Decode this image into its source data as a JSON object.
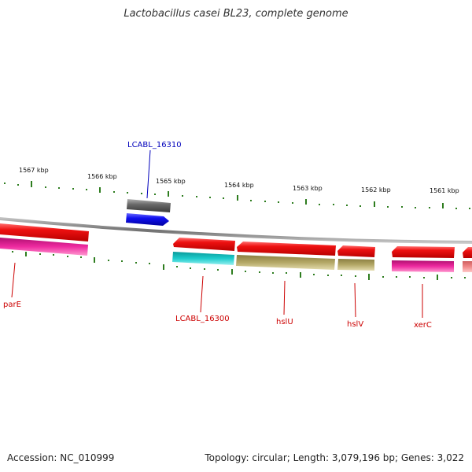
{
  "title": "Lactobacillus casei BL23, complete genome",
  "accession": "Accession: NC_010999",
  "summary": "Topology: circular; Length: 3,079,196 bp; Genes: 3,022",
  "colors": {
    "backbone": "#8a8a8a",
    "ticks": "#2e7d1f",
    "gene_red": "#ee1111",
    "gene_pink": "#ee2aa0",
    "gene_cyan": "#1ccccc",
    "gene_olive": "#b3a766",
    "gene_blue": "#1010ee",
    "gene_gray": "#6a6a6a",
    "gene_salmon": "#f08888",
    "label_red": "#cc0000",
    "label_blue": "#0000bb"
  },
  "scale_labels": [
    "1567 kbp",
    "1566 kbp",
    "1565 kbp",
    "1564 kbp",
    "1563 kbp",
    "1562 kbp",
    "1561 kbp"
  ],
  "gene_labels": {
    "lcabl_16310": "LCABL_16310",
    "pare": "parE",
    "lcabl_16300": "LCABL_16300",
    "hslu": "hslU",
    "hslv": "hslV",
    "xerc": "xerC"
  }
}
